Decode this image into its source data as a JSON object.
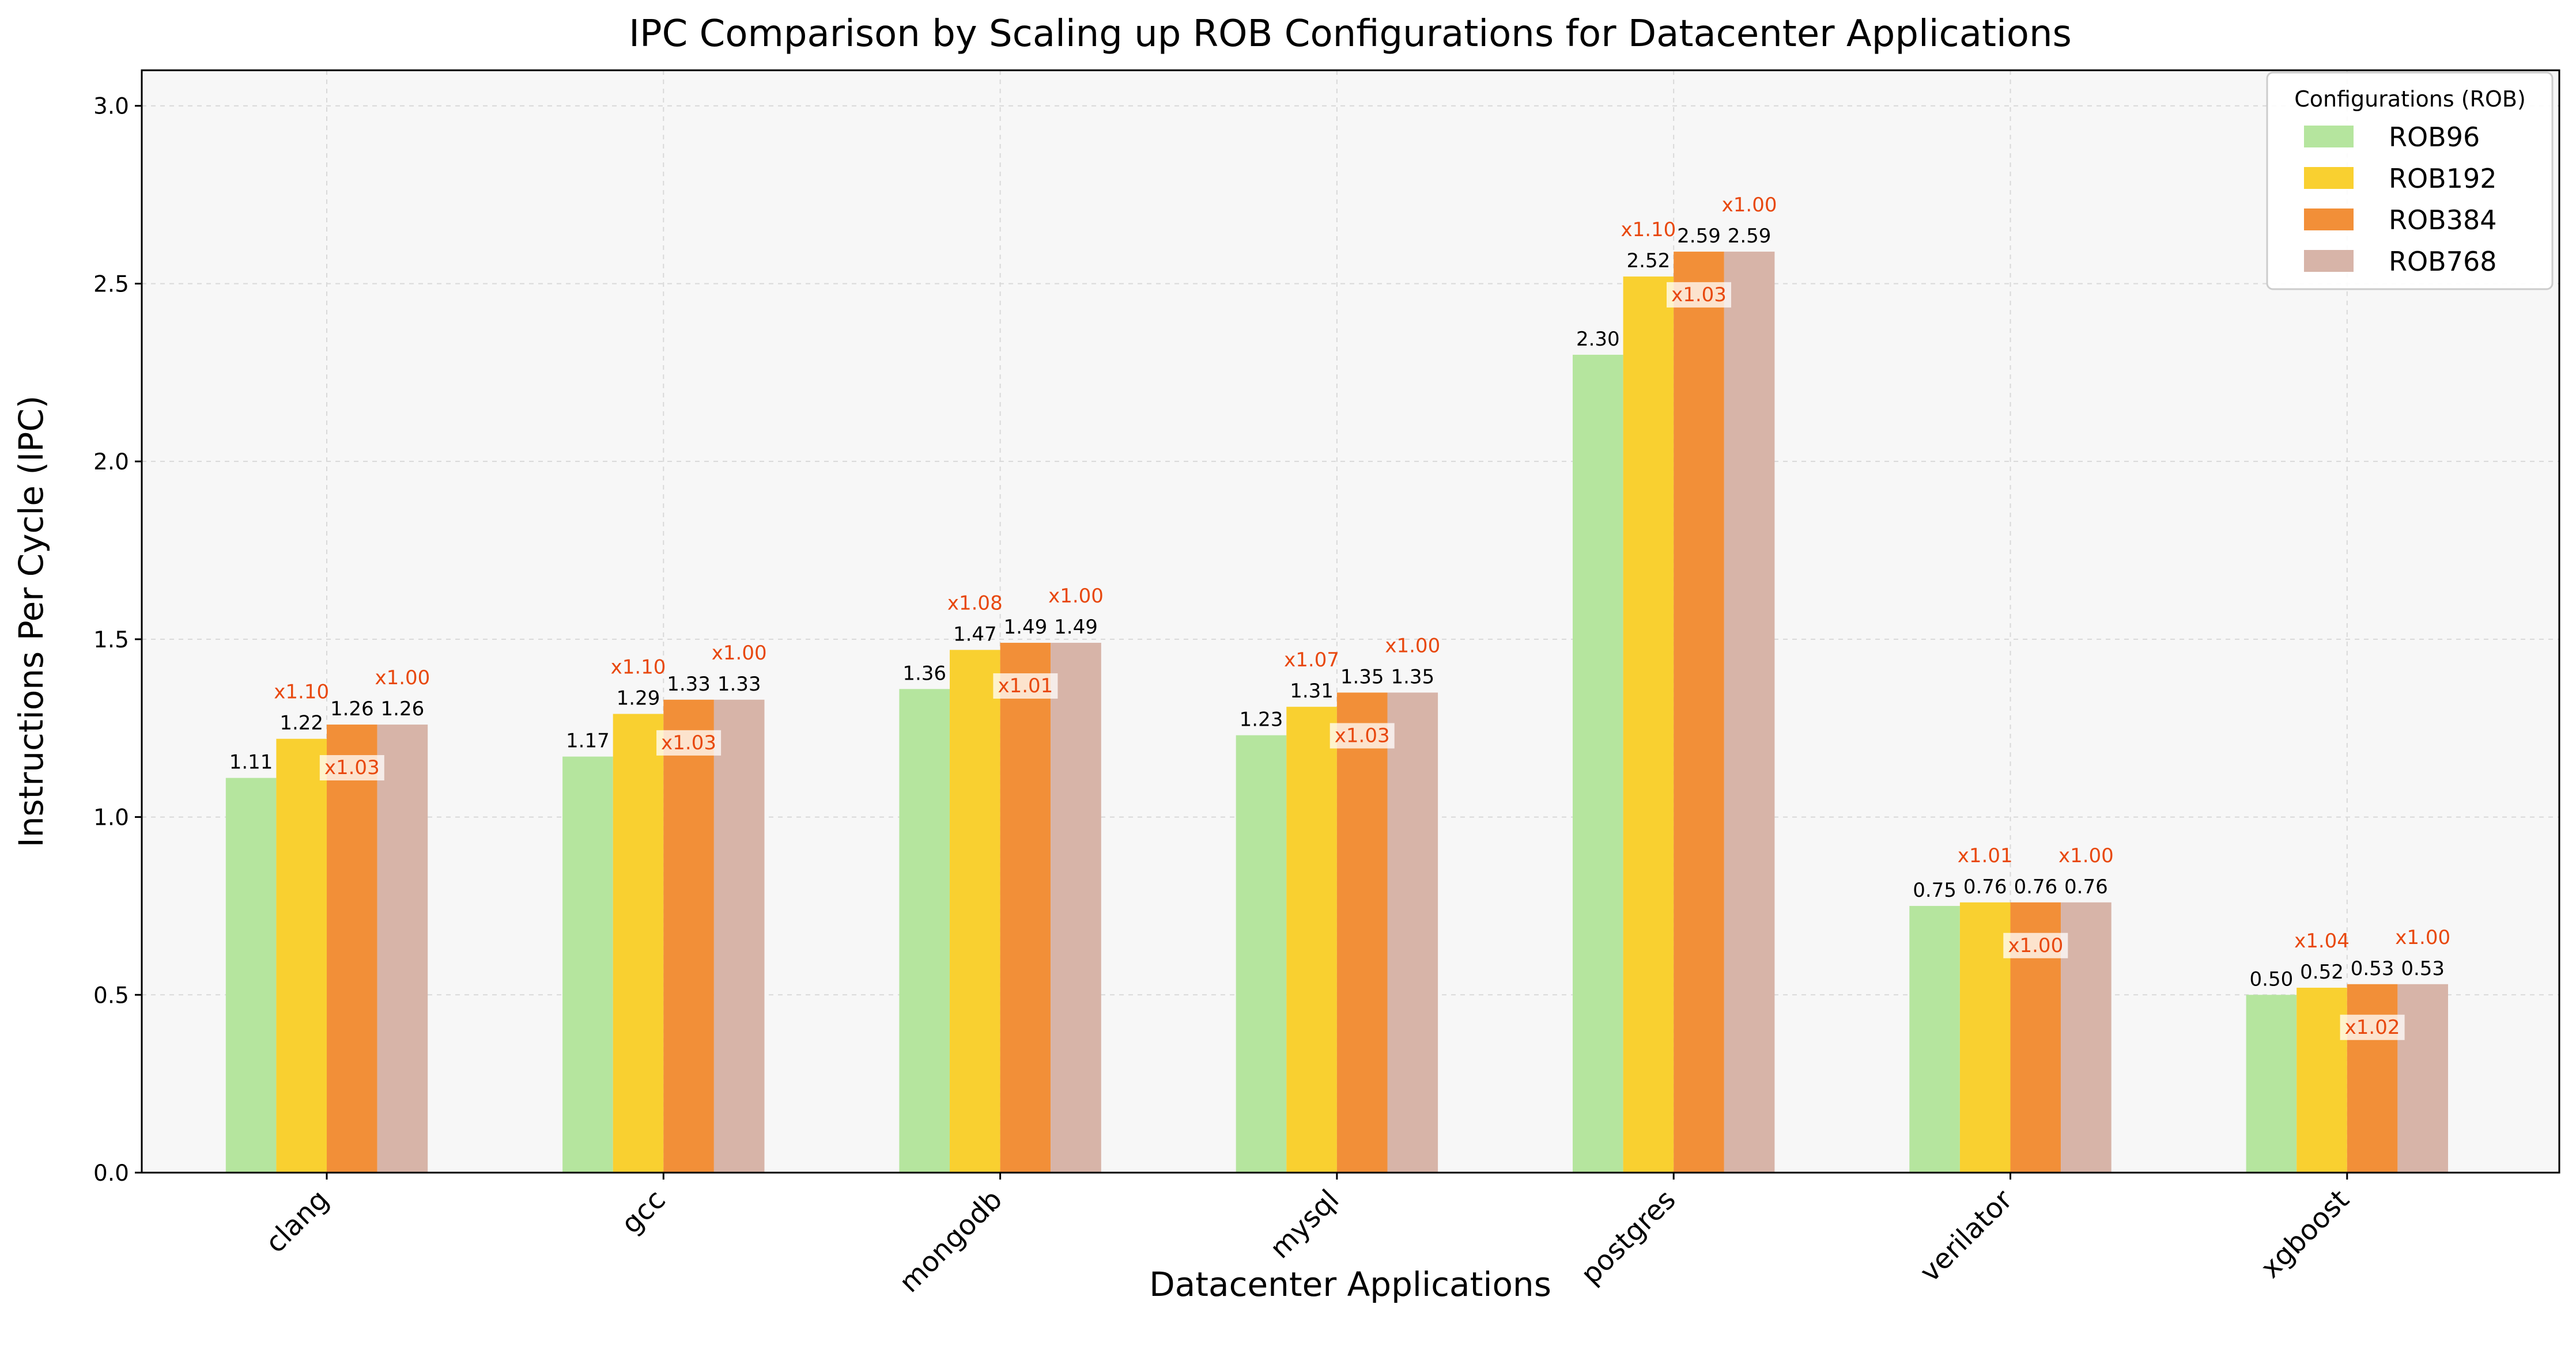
{
  "chart_data": {
    "type": "bar",
    "title": "IPC Comparison by Scaling up ROB Configurations for Datacenter Applications",
    "xlabel": "Datacenter Applications",
    "ylabel": "Instructions Per Cycle (IPC)",
    "ylim": [
      0,
      3.1
    ],
    "yticks": [
      "0.0",
      "0.5",
      "1.0",
      "1.5",
      "2.0",
      "2.5",
      "3.0"
    ],
    "grid": true,
    "legend": {
      "title": "Configurations (ROB)",
      "placement": "top-right"
    },
    "categories": [
      "clang",
      "gcc",
      "mongodb",
      "mysql",
      "postgres",
      "verilator",
      "xgboost"
    ],
    "series": [
      {
        "name": "ROB96",
        "color": "#b5e59e",
        "values": [
          1.11,
          1.17,
          1.36,
          1.23,
          2.3,
          0.75,
          0.5
        ],
        "value_labels": [
          "1.11",
          "1.17",
          "1.36",
          "1.23",
          "2.30",
          "0.75",
          "0.50"
        ]
      },
      {
        "name": "ROB192",
        "color": "#f9d030",
        "values": [
          1.22,
          1.29,
          1.47,
          1.31,
          2.52,
          0.76,
          0.52
        ],
        "value_labels": [
          "1.22",
          "1.29",
          "1.47",
          "1.31",
          "2.52",
          "0.76",
          "0.52"
        ]
      },
      {
        "name": "ROB384",
        "color": "#f28f38",
        "values": [
          1.26,
          1.33,
          1.49,
          1.35,
          2.59,
          0.76,
          0.53
        ],
        "value_labels": [
          "1.26",
          "1.33",
          "1.49",
          "1.35",
          "2.59",
          "0.76",
          "0.53"
        ]
      },
      {
        "name": "ROB768",
        "color": "#d7b4a8",
        "values": [
          1.26,
          1.33,
          1.49,
          1.35,
          2.59,
          0.76,
          0.53
        ],
        "value_labels": [
          "1.26",
          "1.33",
          "1.49",
          "1.35",
          "2.59",
          "0.76",
          "0.53"
        ]
      }
    ],
    "speedup_annotations": [
      {
        "series": "ROB192",
        "labels": [
          "x1.10",
          "x1.10",
          "x1.08",
          "x1.07",
          "x1.10",
          "x1.01",
          "x1.04"
        ],
        "position": "above"
      },
      {
        "series": "ROB384",
        "labels": [
          "x1.03",
          "x1.03",
          "x1.01",
          "x1.03",
          "x1.03",
          "x1.00",
          "x1.02"
        ],
        "position": "inside"
      },
      {
        "series": "ROB768",
        "labels": [
          "x1.00",
          "x1.00",
          "x1.00",
          "x1.00",
          "x1.00",
          "x1.00",
          "x1.00"
        ],
        "position": "above"
      }
    ],
    "colors": {
      "plot_background": "#f7f7f7",
      "annotation": "#e8480e",
      "grid": "#d9d9d9"
    }
  }
}
